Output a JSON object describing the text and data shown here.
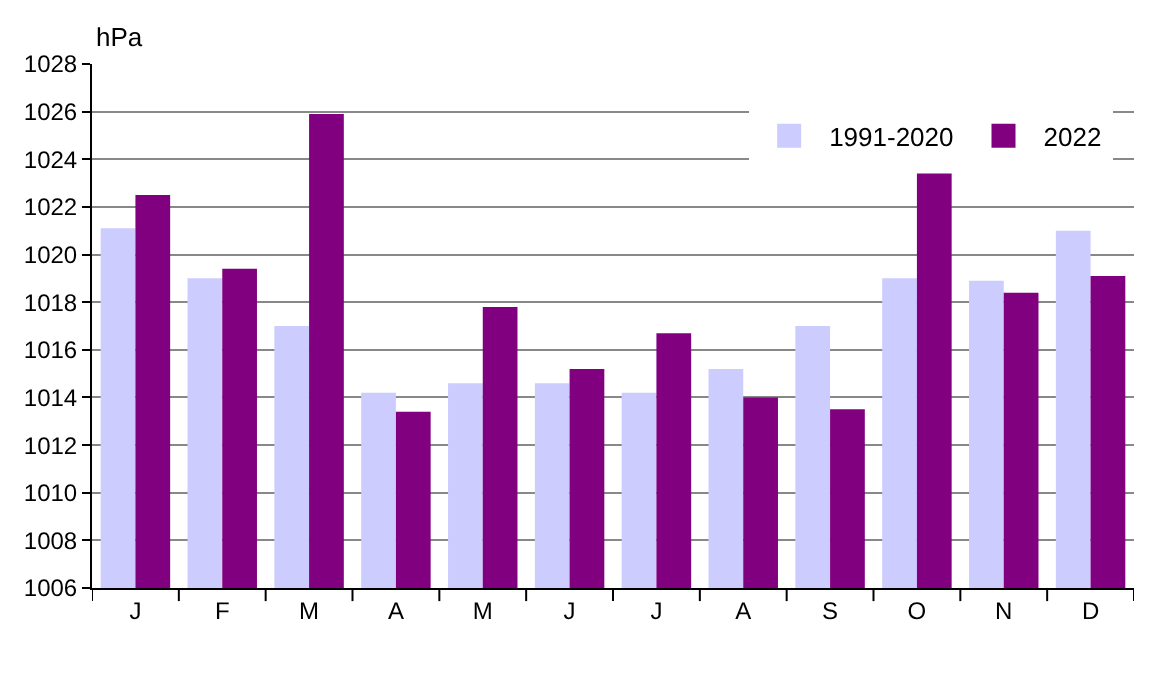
{
  "chart_data": {
    "type": "bar",
    "ylabel": "hPa",
    "categories": [
      "J",
      "F",
      "M",
      "A",
      "M",
      "J",
      "J",
      "A",
      "S",
      "O",
      "N",
      "D"
    ],
    "series": [
      {
        "name": "1991-2020",
        "color": "#ccccff",
        "values": [
          1021.1,
          1019.0,
          1017.0,
          1014.2,
          1014.6,
          1014.6,
          1014.2,
          1015.2,
          1017.0,
          1019.0,
          1018.9,
          1021.0
        ]
      },
      {
        "name": "2022",
        "color": "#800080",
        "values": [
          1022.5,
          1019.4,
          1025.9,
          1013.4,
          1017.8,
          1015.2,
          1016.7,
          1014.0,
          1013.5,
          1023.4,
          1018.4,
          1019.1
        ]
      }
    ],
    "ylim": [
      1006,
      1028
    ],
    "yticks": [
      1006,
      1008,
      1010,
      1012,
      1014,
      1016,
      1018,
      1020,
      1022,
      1024,
      1026,
      1028
    ],
    "grid": "y",
    "legend": "top right"
  }
}
